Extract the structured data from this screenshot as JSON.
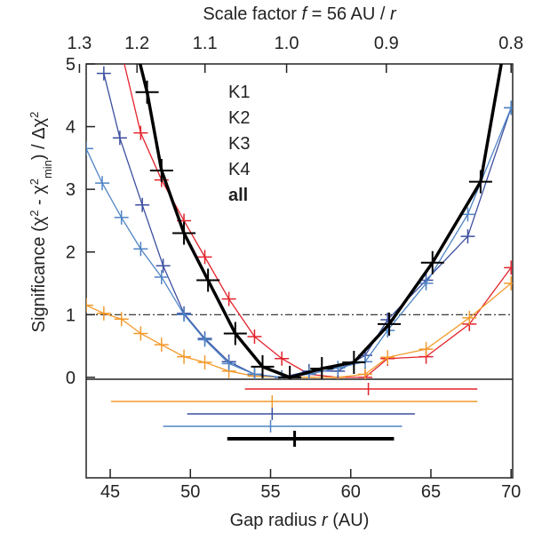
{
  "chart_data": {
    "type": "line",
    "top_axis_label": [
      {
        "text": "Scale factor "
      },
      {
        "text": "f",
        "italic": true
      },
      {
        "text": " = 56 AU / "
      },
      {
        "text": "r",
        "italic": true
      }
    ],
    "x_label": [
      {
        "text": "Gap radius "
      },
      {
        "text": "r",
        "italic": true
      },
      {
        "text": " (AU)"
      }
    ],
    "y_label": [
      {
        "text": "Significance (χ"
      },
      {
        "text": "2",
        "sup": true
      },
      {
        "text": " - χ"
      },
      {
        "text": "2",
        "sup": true
      },
      {
        "text": "min",
        "sub": true
      },
      {
        "text": ") / Δχ"
      },
      {
        "text": "2",
        "sup": true
      }
    ],
    "xlim": [
      43.5,
      70.1
    ],
    "xticks": [
      45,
      50,
      55,
      60,
      65,
      70
    ],
    "ylim": [
      -0.03,
      5.0
    ],
    "yticks": [
      0,
      1,
      2,
      3,
      4,
      5
    ],
    "x2ticks": [
      {
        "value": 43.08,
        "label": "1.3"
      },
      {
        "value": 46.67,
        "label": "1.2"
      },
      {
        "value": 50.91,
        "label": "1.1"
      },
      {
        "value": 56,
        "label": "1.0"
      },
      {
        "value": 62.22,
        "label": "0.9"
      },
      {
        "value": 70,
        "label": "0.8"
      }
    ],
    "reference_line": 1,
    "series": [
      {
        "name": "K1",
        "color": "#e3232c",
        "x": [
          45.6,
          46.9,
          48.2,
          49.6,
          50.9,
          52.4,
          54.0,
          55.7,
          57.4,
          59.2,
          60.9,
          62.3,
          64.7,
          67.4,
          70.0
        ],
        "values": [
          5.3,
          3.9,
          3.15,
          2.5,
          1.92,
          1.25,
          0.65,
          0.3,
          0.05,
          0.0,
          0.0,
          0.3,
          0.33,
          0.85,
          1.75
        ],
        "fit": {
          "center": 61.1,
          "low": 53.4,
          "high": 67.9
        }
      },
      {
        "name": "K2",
        "color": "#f39a2c",
        "x": [
          43.5,
          44.6,
          45.7,
          46.9,
          48.2,
          49.6,
          50.9,
          52.4,
          54.0,
          55.7,
          57.4,
          59.2,
          60.9,
          62.3,
          64.7,
          67.4,
          70.0
        ],
        "values": [
          1.15,
          1.02,
          0.93,
          0.7,
          0.52,
          0.33,
          0.24,
          0.1,
          0.02,
          0.0,
          0.0,
          0.0,
          0.05,
          0.32,
          0.45,
          0.95,
          1.5
        ],
        "fit": {
          "center": 55.1,
          "low": 45.05,
          "high": 67.9
        }
      },
      {
        "name": "K3",
        "color": "#3c4fa0",
        "x": [
          44.6,
          45.6,
          47.0,
          48.3,
          49.6,
          50.9,
          52.4,
          54.0,
          55.7,
          57.4,
          59.2,
          60.9,
          62.3,
          64.7,
          67.3,
          70.0
        ],
        "values": [
          4.85,
          3.82,
          2.75,
          1.78,
          1.02,
          0.62,
          0.25,
          0.05,
          0.0,
          0.1,
          0.1,
          0.35,
          0.92,
          1.55,
          2.25,
          4.3
        ],
        "fit": {
          "center": 55.1,
          "low": 49.8,
          "high": 64.0
        }
      },
      {
        "name": "K4",
        "color": "#4f84c4",
        "x": [
          43.5,
          44.5,
          45.7,
          46.9,
          48.2,
          49.6,
          50.9,
          52.4,
          54.0,
          55.7,
          57.4,
          59.2,
          60.9,
          62.3,
          64.7,
          67.3,
          70.0
        ],
        "values": [
          3.65,
          3.1,
          2.55,
          2.05,
          1.6,
          1.0,
          0.6,
          0.22,
          0.05,
          0.0,
          0.05,
          0.15,
          0.25,
          0.75,
          1.5,
          2.6,
          4.3
        ],
        "fit": {
          "center": 55.0,
          "low": 48.3,
          "high": 63.2
        }
      },
      {
        "name": "all",
        "color": "#000000",
        "x": [
          45.9,
          47.3,
          48.2,
          49.6,
          51.1,
          52.8,
          54.5,
          56.2,
          58.2,
          60.2,
          62.4,
          65.1,
          68.1,
          69.8
        ],
        "values": [
          6.0,
          4.55,
          3.3,
          2.3,
          1.55,
          0.7,
          0.17,
          0.0,
          0.14,
          0.24,
          0.85,
          1.83,
          3.12,
          5.6
        ],
        "fit": {
          "center": 56.5,
          "low": 52.3,
          "high": 62.7
        }
      }
    ]
  }
}
